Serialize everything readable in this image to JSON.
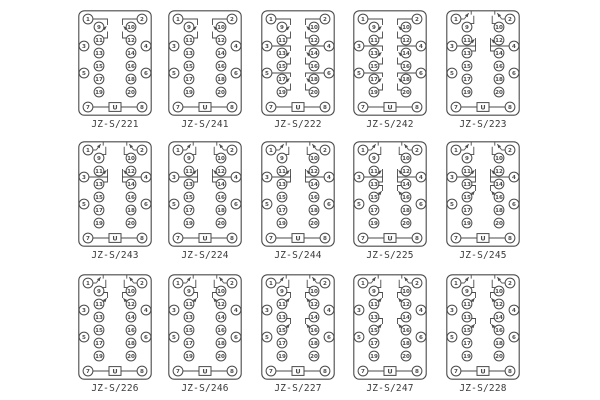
{
  "page": {
    "description": "Grid of 15 relay socket terminal wiring diagrams, JZ-S series",
    "rows": 3,
    "columns": 5
  },
  "colors": {
    "background": "#ffffff",
    "line": "#4a4a4a",
    "label": "#3b3b3b"
  },
  "terminals": {
    "outer_left": [
      "1",
      "3",
      "5",
      "7"
    ],
    "outer_right": [
      "2",
      "4",
      "6",
      "8"
    ],
    "inner_left": [
      "9",
      "11",
      "13",
      "15",
      "17",
      "19"
    ],
    "inner_right": [
      "10",
      "12",
      "14",
      "16",
      "18",
      "20"
    ],
    "power_label": "U"
  },
  "diagrams": [
    {
      "label": "JZ-S/221",
      "contacts": [
        "contact-1-9-11"
      ]
    },
    {
      "label": "JZ-S/241",
      "contacts": [
        "contact-1-9-11"
      ]
    },
    {
      "label": "JZ-S/222",
      "contacts": [
        "contact-1-9-11",
        "contact-3-13-15",
        "contact-5-17-19"
      ]
    },
    {
      "label": "JZ-S/242",
      "contacts": [
        "contact-1-9-11",
        "contact-3-13-15",
        "contact-5-17-19"
      ]
    },
    {
      "label": "JZ-S/223",
      "contacts": [
        "contact-top-1-9",
        "contact-3-11-13"
      ]
    },
    {
      "label": "JZ-S/243",
      "contacts": [
        "contact-top-1-9",
        "contact-3-11-13"
      ]
    },
    {
      "label": "JZ-S/224",
      "contacts": [
        "contact-top-1-9",
        "contact-3-11-13"
      ]
    },
    {
      "label": "JZ-S/244",
      "contacts": [
        "contact-top-1-9",
        "contact-3-11-13"
      ]
    },
    {
      "label": "JZ-S/225",
      "contacts": [
        "contact-top-1-9",
        "contact-3-11-13",
        "contact-13-15"
      ]
    },
    {
      "label": "JZ-S/245",
      "contacts": [
        "contact-top-1-9",
        "contact-3-11-13",
        "contact-13-15"
      ]
    },
    {
      "label": "JZ-S/226",
      "contacts": [
        "contact-top-1-9",
        "contact-9-11"
      ]
    },
    {
      "label": "JZ-S/246",
      "contacts": [
        "contact-top-1-9",
        "contact-9-11"
      ]
    },
    {
      "label": "JZ-S/227",
      "contacts": [
        "contact-top-1-9",
        "contact-9-11",
        "contact-13-15"
      ]
    },
    {
      "label": "JZ-S/247",
      "contacts": [
        "contact-top-1-9",
        "contact-9-11",
        "contact-13-15"
      ]
    },
    {
      "label": "JZ-S/228",
      "contacts": [
        "contact-top-1-9",
        "contact-9-11",
        "contact-13-15"
      ]
    }
  ]
}
